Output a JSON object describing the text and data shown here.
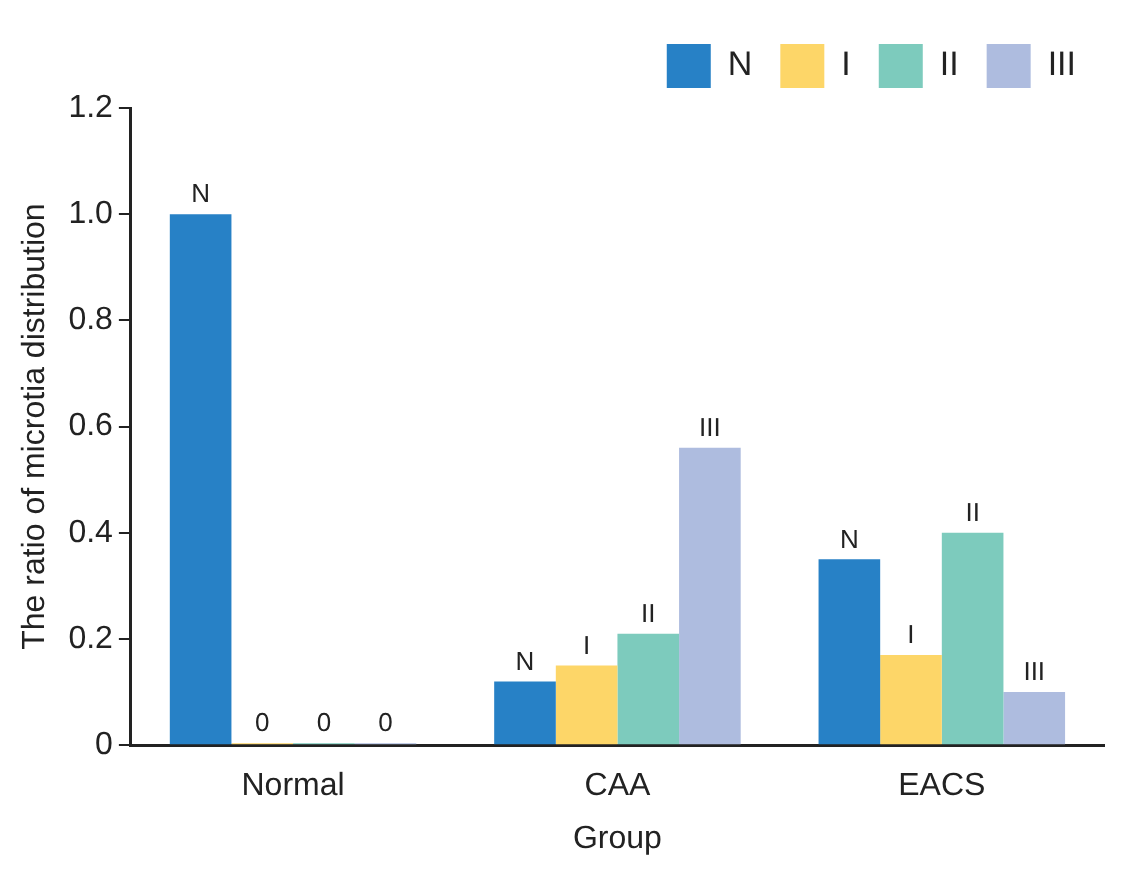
{
  "chart_data": {
    "type": "bar",
    "xlabel": "Group",
    "ylabel": "The ratio of microtia distribution",
    "categories": [
      "Normal",
      "CAA",
      "EACS"
    ],
    "series": [
      {
        "name": "N",
        "color": "#2781c6",
        "values": [
          1.0,
          0.12,
          0.35
        ],
        "value_labels": [
          "N",
          "N",
          "N"
        ]
      },
      {
        "name": "I",
        "color": "#fdd668",
        "values": [
          0,
          0.15,
          0.17
        ],
        "value_labels": [
          "0",
          "I",
          "I"
        ]
      },
      {
        "name": "II",
        "color": "#7dcbbd",
        "values": [
          0,
          0.21,
          0.4
        ],
        "value_labels": [
          "0",
          "II",
          "II"
        ]
      },
      {
        "name": "III",
        "color": "#aebcdf",
        "values": [
          0,
          0.56,
          0.1
        ],
        "value_labels": [
          "0",
          "III",
          "III"
        ]
      }
    ],
    "ylim": [
      0,
      1.2
    ],
    "yticks": [
      0,
      {
        "value": 0.2,
        "label": "0.2"
      },
      {
        "value": 0.4,
        "label": "0.4"
      },
      {
        "value": 0.6,
        "label": "0.6"
      },
      {
        "value": 0.8,
        "label": "0.8"
      },
      {
        "value": 1,
        "label": "1.0"
      },
      {
        "value": 1.2,
        "label": "1.2"
      }
    ],
    "grid": false,
    "legend": "top right"
  }
}
